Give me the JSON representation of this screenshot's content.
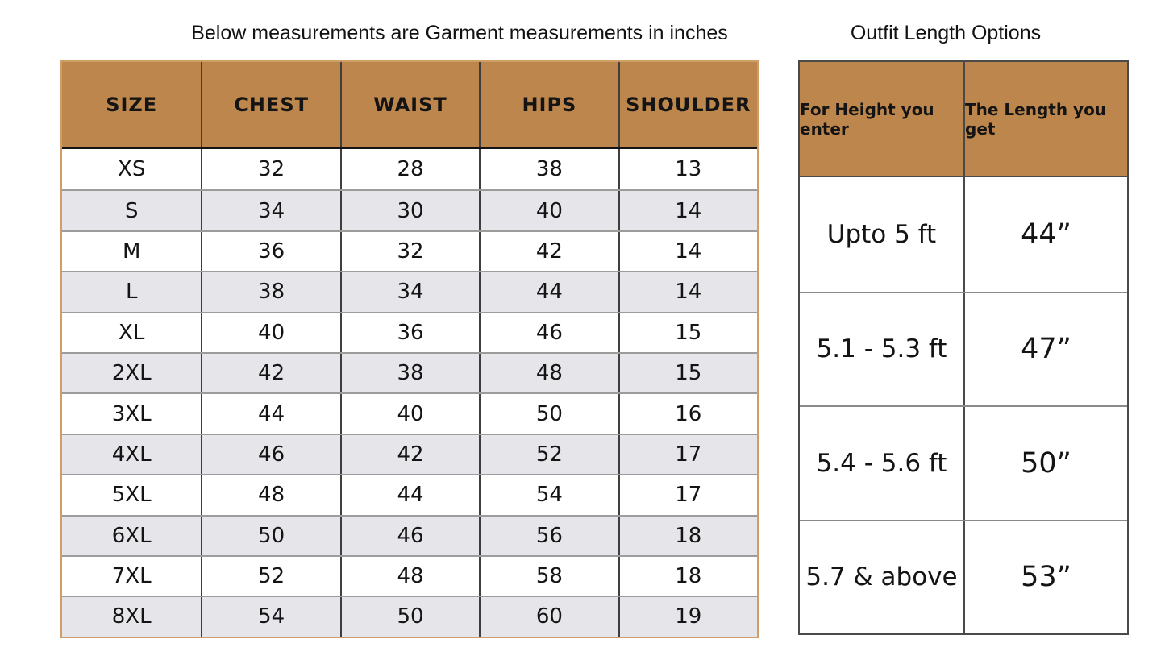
{
  "colors": {
    "header_bg": "#bc864c",
    "alt_row_bg": "#e6e5ea",
    "left_table_outer_border": "#cf9d66",
    "dark_grid_line": "#3e3e3e",
    "gray_row_line": "#9c9c9c",
    "text": "#141414"
  },
  "chart_data": [
    {
      "type": "table",
      "title": "Below measurements are Garment measurements in inches",
      "columns": [
        "SIZE",
        "CHEST",
        "WAIST",
        "HIPS",
        "SHOULDER"
      ],
      "rows": [
        [
          "XS",
          "32",
          "28",
          "38",
          "13"
        ],
        [
          "S",
          "34",
          "30",
          "40",
          "14"
        ],
        [
          "M",
          "36",
          "32",
          "42",
          "14"
        ],
        [
          "L",
          "38",
          "34",
          "44",
          "14"
        ],
        [
          "XL",
          "40",
          "36",
          "46",
          "15"
        ],
        [
          "2XL",
          "42",
          "38",
          "48",
          "15"
        ],
        [
          "3XL",
          "44",
          "40",
          "50",
          "16"
        ],
        [
          "4XL",
          "46",
          "42",
          "52",
          "17"
        ],
        [
          "5XL",
          "48",
          "44",
          "54",
          "17"
        ],
        [
          "6XL",
          "50",
          "46",
          "56",
          "18"
        ],
        [
          "7XL",
          "52",
          "48",
          "58",
          "18"
        ],
        [
          "8XL",
          "54",
          "50",
          "60",
          "19"
        ]
      ],
      "layout": {
        "alternating_rows": true,
        "header_style": "brown"
      }
    },
    {
      "type": "table",
      "title": "Outfit Length Options",
      "columns": [
        "For Height you enter",
        "The Length you get"
      ],
      "rows": [
        [
          "Upto 5 ft",
          "44”"
        ],
        [
          "5.1 - 5.3 ft",
          "47”"
        ],
        [
          "5.4 - 5.6 ft",
          "50”"
        ],
        [
          "5.7 & above",
          "53”"
        ]
      ],
      "layout": {
        "alternating_rows": false,
        "header_style": "brown"
      }
    }
  ]
}
